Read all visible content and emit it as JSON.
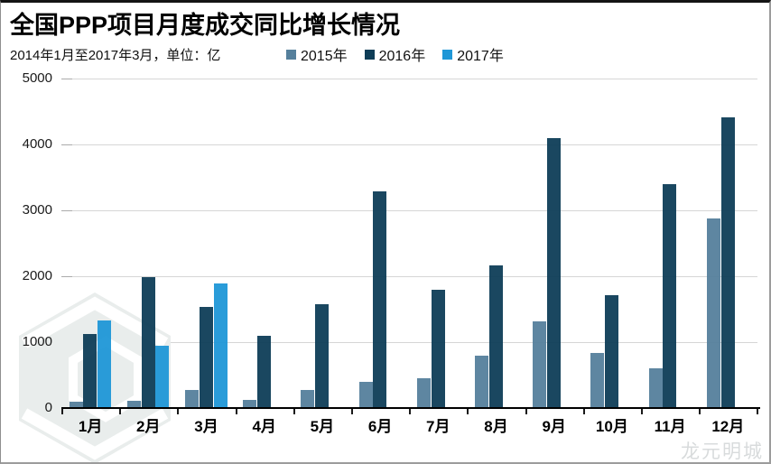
{
  "header": {
    "title": "全国PPP项目月度成交同比增长情况",
    "subtitle": "2014年1月至2017年3月，单位：亿"
  },
  "legend": [
    {
      "label": "2015年",
      "color": "#55809c"
    },
    {
      "label": "2016年",
      "color": "#0e3d57"
    },
    {
      "label": "2017年",
      "color": "#1f97d7"
    }
  ],
  "chart_data": {
    "type": "bar",
    "title": "全国PPP项目月度成交同比增长情况",
    "subtitle": "2014年1月至2017年3月，单位：亿",
    "unit": "亿",
    "categories": [
      "1月",
      "2月",
      "3月",
      "4月",
      "5月",
      "6月",
      "7月",
      "8月",
      "9月",
      "10月",
      "11月",
      "12月"
    ],
    "series": [
      {
        "name": "2015年",
        "color": "#55809c",
        "values": [
          90,
          110,
          280,
          130,
          280,
          400,
          450,
          790,
          1310,
          830,
          600,
          2870
        ]
      },
      {
        "name": "2016年",
        "color": "#0e3d57",
        "values": [
          1120,
          1980,
          1540,
          1090,
          1570,
          3290,
          1790,
          2170,
          4090,
          1710,
          3400,
          4410
        ]
      },
      {
        "name": "2017年",
        "color": "#1f97d7",
        "values": [
          1330,
          950,
          1890,
          null,
          null,
          null,
          null,
          null,
          null,
          null,
          null,
          null
        ]
      }
    ],
    "ylim": [
      0,
      5000
    ],
    "yticks": [
      0,
      1000,
      2000,
      3000,
      4000,
      5000
    ],
    "xlabel": "",
    "ylabel": "",
    "grid": true,
    "legend_position": "top"
  },
  "watermarks": {
    "logo_name": "hexagon-logo",
    "text": "龙元明城"
  },
  "colors": {
    "gridline": "#d6d6d6",
    "axis": "#000000",
    "watermark_fill": "#e9edec",
    "watermark_text": "#d8dbdc"
  }
}
